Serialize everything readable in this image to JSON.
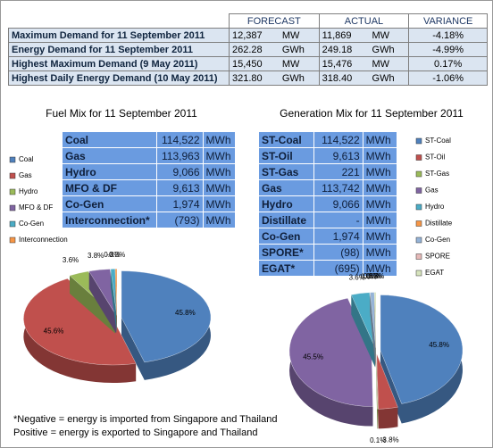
{
  "summary_table": {
    "header": [
      "FORECAST",
      "ACTUAL",
      "VARIANCE"
    ],
    "rows": [
      {
        "label": "Maximum Demand for 11 September 2011",
        "forecast": "12,387",
        "forecast_unit": "MW",
        "actual": "11,869",
        "actual_unit": "MW",
        "variance": "-4.18%"
      },
      {
        "label": "Energy Demand for 11 September 2011",
        "forecast": "262.28",
        "forecast_unit": "GWh",
        "actual": "249.18",
        "actual_unit": "GWh",
        "variance": "-4.99%"
      },
      {
        "label": "Highest Maximum Demand (9 May 2011)",
        "forecast": "15,450",
        "forecast_unit": "MW",
        "actual": "15,476",
        "actual_unit": "MW",
        "variance": "0.17%"
      },
      {
        "label": "Highest Daily Energy Demand (10 May 2011)",
        "forecast": "321.80",
        "forecast_unit": "GWh",
        "actual": "318.40",
        "actual_unit": "GWh",
        "variance": "-1.06%"
      }
    ]
  },
  "chart_data": [
    {
      "type": "pie",
      "title": "Fuel Mix for 11 September 2011",
      "table": {
        "rows": [
          {
            "name": "Coal",
            "value": "114,522",
            "unit": "MWh"
          },
          {
            "name": "Gas",
            "value": "113,963",
            "unit": "MWh"
          },
          {
            "name": "Hydro",
            "value": "9,066",
            "unit": "MWh"
          },
          {
            "name": "MFO & DF",
            "value": "9,613",
            "unit": "MWh"
          },
          {
            "name": "Co-Gen",
            "value": "1,974",
            "unit": "MWh"
          },
          {
            "name": "Interconnection*",
            "value": "(793)",
            "unit": "MWh"
          }
        ]
      },
      "categories": [
        "Coal",
        "Gas",
        "Hydro",
        "MFO & DF",
        "Co-Gen",
        "Interconnection"
      ],
      "values": [
        45.8,
        45.6,
        3.6,
        3.8,
        0.8,
        -0.3
      ],
      "value_labels": [
        "45.8%",
        "45.6%",
        "3.6%",
        "3.8%",
        "0.8%",
        "-0.3%"
      ],
      "colors": [
        "#4f81bd",
        "#c0504d",
        "#9bbb59",
        "#8064a2",
        "#4bacc6",
        "#f79646"
      ]
    },
    {
      "type": "pie",
      "title": "Generation Mix for 11 September 2011",
      "table": {
        "rows": [
          {
            "name": "ST-Coal",
            "value": "114,522",
            "unit": "MWh"
          },
          {
            "name": "ST-Oil",
            "value": "9,613",
            "unit": "MWh"
          },
          {
            "name": "ST-Gas",
            "value": "221",
            "unit": "MWh"
          },
          {
            "name": "Gas",
            "value": "113,742",
            "unit": "MWh"
          },
          {
            "name": "Hydro",
            "value": "9,066",
            "unit": "MWh"
          },
          {
            "name": "Distillate",
            "value": "-",
            "unit": "MWh"
          },
          {
            "name": "Co-Gen",
            "value": "1,974",
            "unit": "MWh"
          },
          {
            "name": "SPORE*",
            "value": "(98)",
            "unit": "MWh"
          },
          {
            "name": "EGAT*",
            "value": "(695)",
            "unit": "MWh"
          }
        ]
      },
      "categories": [
        "ST-Coal",
        "ST-Oil",
        "ST-Gas",
        "Gas",
        "Hydro",
        "Distillate",
        "Co-Gen",
        "SPORE",
        "EGAT"
      ],
      "values": [
        45.8,
        3.8,
        0.1,
        45.5,
        3.6,
        0.0,
        0.8,
        0.0,
        -0.3
      ],
      "value_labels": [
        "45.8%",
        "3.8%",
        "0.1%",
        "45.5%",
        "3.6%",
        "0.0%",
        "0.8%",
        "0.0%",
        "-0.3%"
      ],
      "colors": [
        "#4f81bd",
        "#c0504d",
        "#9bbb59",
        "#8064a2",
        "#4bacc6",
        "#f79646",
        "#95b3d7",
        "#e6b9b8",
        "#d7e4bd"
      ]
    }
  ],
  "footnote": [
    "*Negative = energy is imported from Singapore and Thailand",
    "Positive = energy is exported to Singapore and Thailand"
  ]
}
